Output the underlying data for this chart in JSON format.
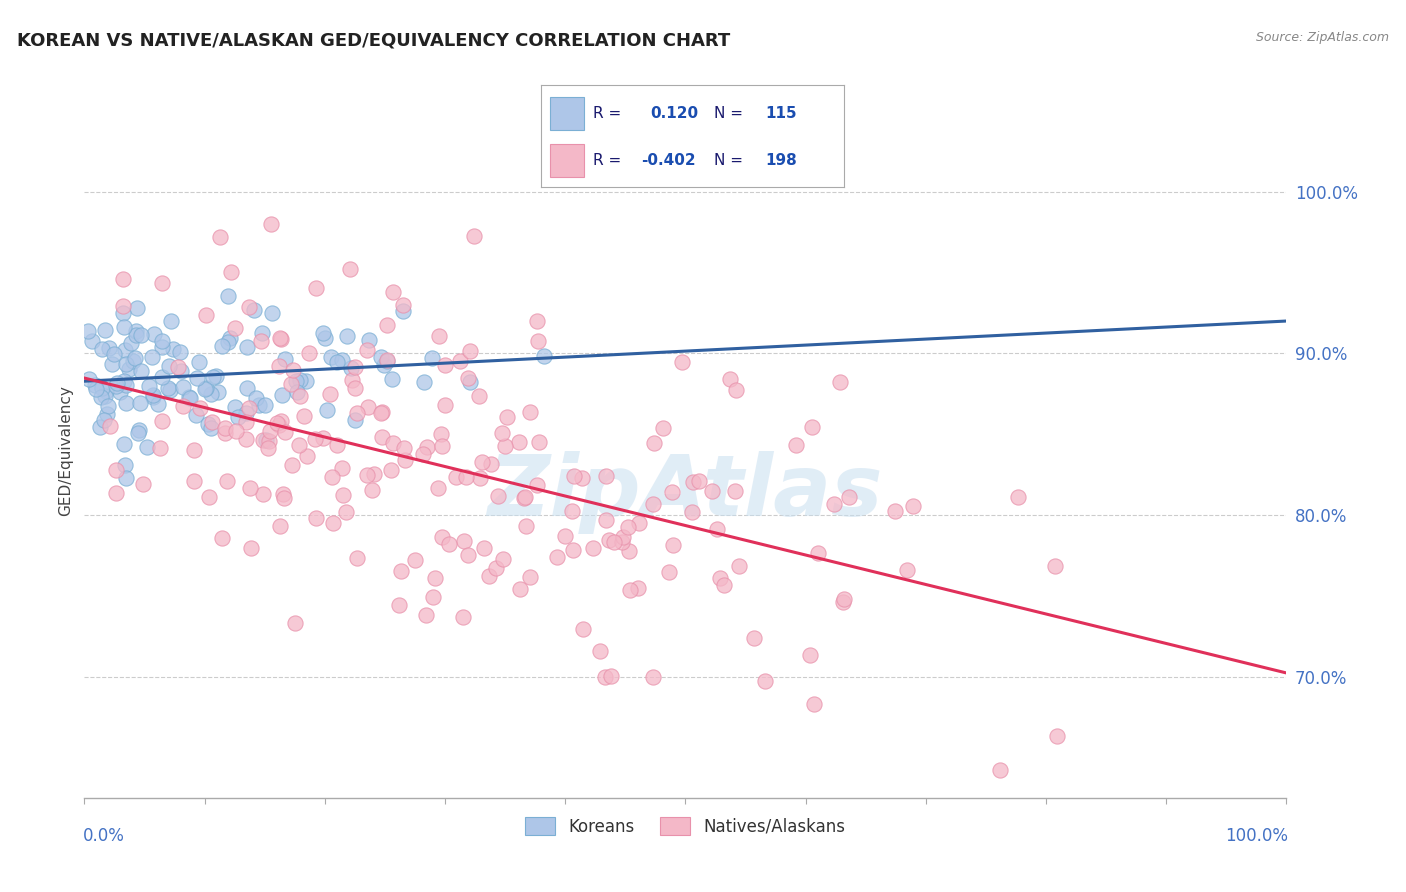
{
  "title": "KOREAN VS NATIVE/ALASKAN GED/EQUIVALENCY CORRELATION CHART",
  "source_text": "Source: ZipAtlas.com",
  "ylabel": "GED/Equivalency",
  "y_tick_labels": [
    "70.0%",
    "80.0%",
    "90.0%",
    "100.0%"
  ],
  "y_tick_values": [
    0.7,
    0.8,
    0.9,
    1.0
  ],
  "x_range": [
    0.0,
    1.0
  ],
  "y_range": [
    0.625,
    1.055
  ],
  "legend_labels_bottom": [
    "Koreans",
    "Natives/Alaskans"
  ],
  "korean_color": "#aec6e8",
  "native_color": "#f4b8c8",
  "korean_edge_color": "#7bafd4",
  "native_edge_color": "#e891ab",
  "korean_line_color": "#3060a0",
  "native_line_color": "#e0305a",
  "korean_R": 0.12,
  "korean_N": 115,
  "native_R": -0.402,
  "native_N": 198,
  "background_color": "#ffffff",
  "grid_color": "#cccccc",
  "watermark_text": "ZipAtlas",
  "title_fontsize": 13,
  "axis_label_color": "#4472c4",
  "legend_text_color": "#1a1a6e",
  "legend_val_color": "#1a4db0"
}
